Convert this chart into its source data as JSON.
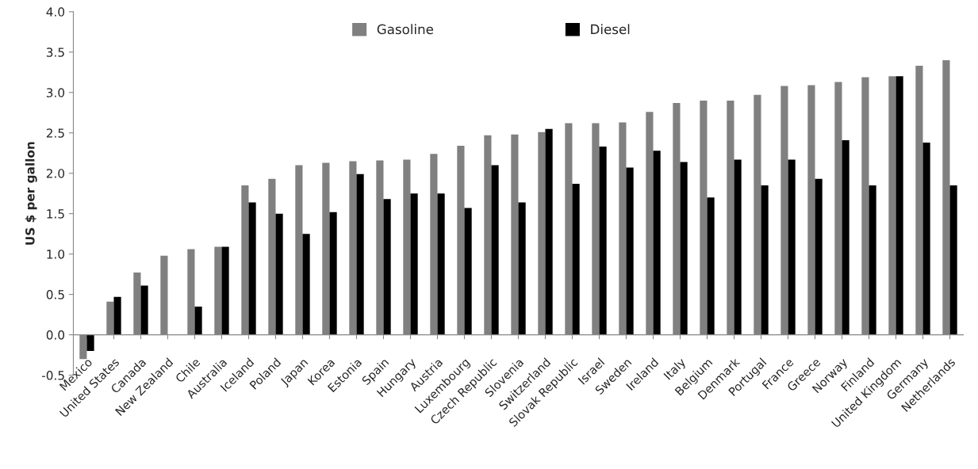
{
  "chart_data": {
    "type": "bar",
    "ylabel": "US $ per gallon",
    "categories": [
      "Mexico",
      "United States",
      "Canada",
      "New Zealand",
      "Chile",
      "Australia",
      "Iceland",
      "Poland",
      "Japan",
      "Korea",
      "Estonia",
      "Spain",
      "Hungary",
      "Austria",
      "Luxembourg",
      "Czech Republic",
      "Slovenia",
      "Switzerland",
      "Slovak Republic",
      "Israel",
      "Sweden",
      "Ireland",
      "Italy",
      "Belgium",
      "Denmark",
      "Portugal",
      "France",
      "Greece",
      "Norway",
      "Finland",
      "United Kingdom",
      "Germany",
      "Netherlands"
    ],
    "series": [
      {
        "name": "Gasoline",
        "color": "#808080",
        "values": [
          -0.3,
          0.41,
          0.77,
          0.98,
          1.06,
          1.09,
          1.85,
          1.93,
          2.1,
          2.13,
          2.15,
          2.16,
          2.17,
          2.24,
          2.34,
          2.47,
          2.48,
          2.51,
          2.62,
          2.62,
          2.63,
          2.76,
          2.87,
          2.9,
          2.9,
          2.97,
          3.08,
          3.09,
          3.13,
          3.19,
          3.2,
          3.33,
          3.4
        ]
      },
      {
        "name": "Diesel",
        "color": "#000000",
        "values": [
          -0.2,
          0.47,
          0.61,
          null,
          0.35,
          1.09,
          1.64,
          1.5,
          1.25,
          1.52,
          1.99,
          1.68,
          1.75,
          1.75,
          1.57,
          2.1,
          1.64,
          2.55,
          1.87,
          2.33,
          2.07,
          2.28,
          2.14,
          1.7,
          2.17,
          1.85,
          2.17,
          1.93,
          2.41,
          1.85,
          3.2,
          2.38,
          1.85
        ]
      }
    ],
    "ylim": [
      -0.5,
      4.0
    ],
    "yticks": [
      {
        "value": -0.5,
        "label": "-0.5"
      },
      {
        "value": 0,
        "label": "0.0"
      },
      {
        "value": 0.5,
        "label": "0.5"
      },
      {
        "value": 1,
        "label": "1.0"
      },
      {
        "value": 1.5,
        "label": "1.5"
      },
      {
        "value": 2,
        "label": "2.0"
      },
      {
        "value": 2.5,
        "label": "2.5"
      },
      {
        "value": 3,
        "label": "3.0"
      },
      {
        "value": 3.5,
        "label": "3.5"
      },
      {
        "value": 4,
        "label": "4.0"
      }
    ],
    "legend": "top",
    "grid": false
  }
}
